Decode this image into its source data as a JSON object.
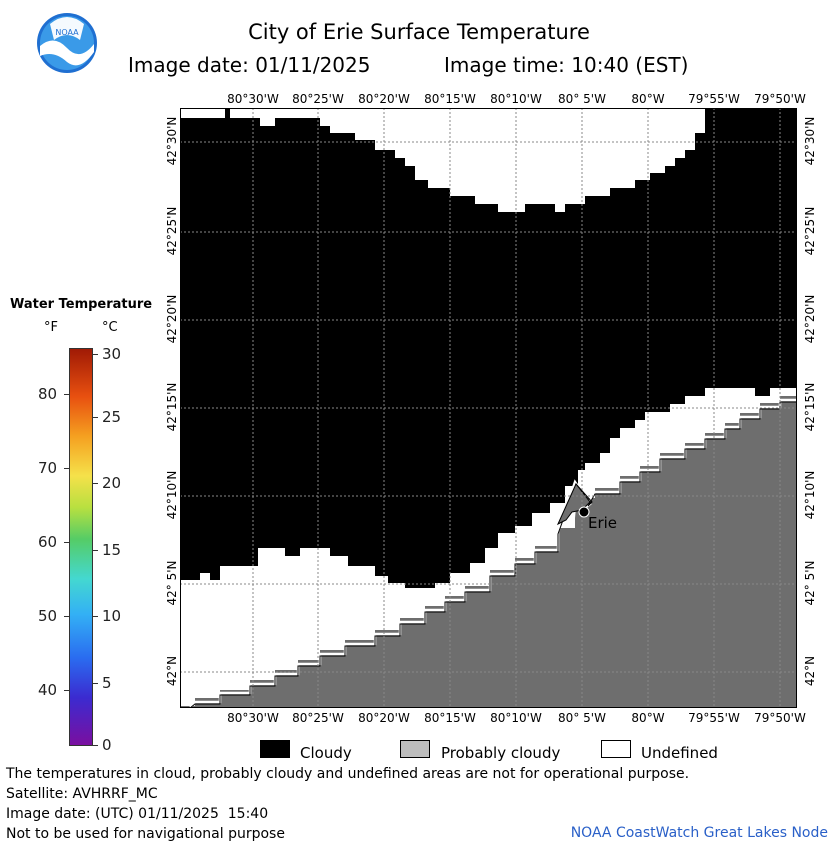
{
  "header": {
    "title": "City of Erie Surface Temperature",
    "image_date_label": "Image date: 01/11/2025",
    "image_time_label": "Image time: 10:40 (EST)"
  },
  "logo": {
    "text": "NOAA"
  },
  "legend": {
    "title": "Water Temperature",
    "unit_f": "°F",
    "unit_c": "°C",
    "f_ticks": [
      "80",
      "70",
      "60",
      "50",
      "40"
    ],
    "c_ticks": [
      "30",
      "25",
      "20",
      "15",
      "10",
      "5",
      "0"
    ]
  },
  "map": {
    "lon_labels": [
      "80°30'W",
      "80°25'W",
      "80°20'W",
      "80°15'W",
      "80°10'W",
      "80° 5'W",
      "80°W",
      "79°55'W",
      "79°50'W"
    ],
    "lat_labels": [
      "42°30'N",
      "42°25'N",
      "42°20'N",
      "42°15'N",
      "42°10'N",
      "42° 5'N",
      "42°N"
    ],
    "city_label": "Erie",
    "colors": {
      "cloudy": "#000000",
      "probably_cloudy": "#6e6e6e",
      "undefined": "#ffffff",
      "grid": "#888888"
    }
  },
  "key": {
    "cloudy": "Cloudy",
    "probably_cloudy": "Probably cloudy",
    "undefined": "Undefined"
  },
  "notes": {
    "line1": "The temperatures in cloud, probably cloudy and undefined areas are not for operational purpose.",
    "line2": "Satellite: AVHRRF_MC",
    "line3": "Image date: (UTC) 01/11/2025  15:40",
    "line4": "Not to be used for navigational purpose",
    "credit": "NOAA CoastWatch Great Lakes Node"
  }
}
